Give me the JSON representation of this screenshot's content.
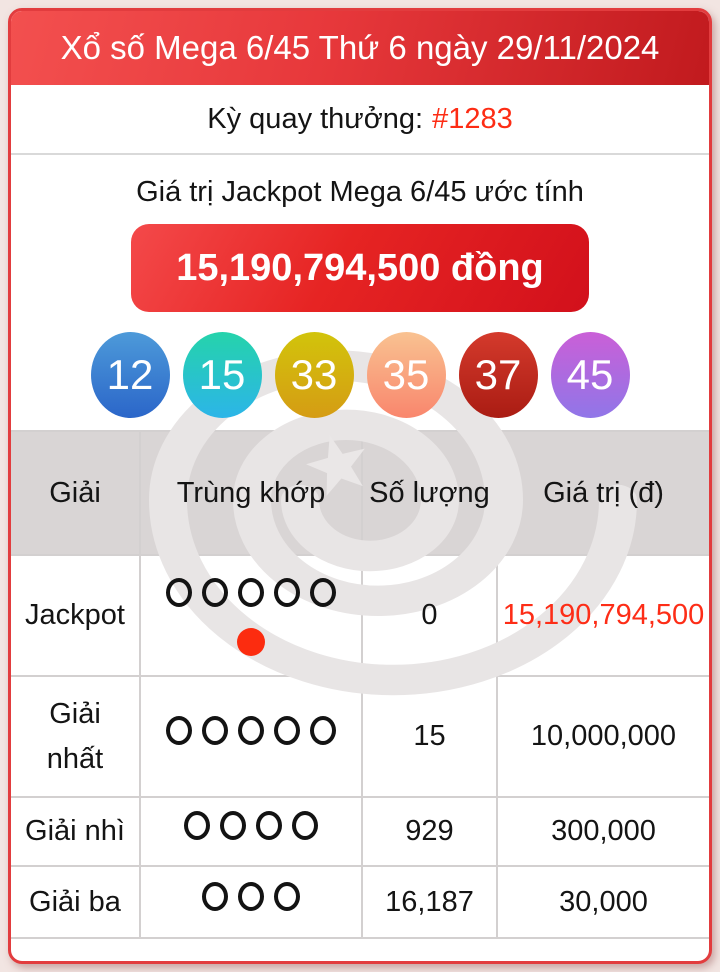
{
  "header": {
    "title": "Xổ số Mega 6/45 Thứ 6 ngày 29/11/2024"
  },
  "draw": {
    "label": "Kỳ quay thưởng:",
    "number": "#1283"
  },
  "jackpot": {
    "caption": "Giá trị Jackpot Mega 6/45 ước tính",
    "amount": "15,190,794,500 đồng"
  },
  "balls": [
    {
      "number": "12",
      "color_top": "#4d9ad9",
      "color_bottom": "#2b66c9"
    },
    {
      "number": "15",
      "color_top": "#25d3ab",
      "color_bottom": "#2cb5e8"
    },
    {
      "number": "33",
      "color_top": "#d2c40b",
      "color_bottom": "#d59c14"
    },
    {
      "number": "35",
      "color_top": "#f9c291",
      "color_bottom": "#f9866d"
    },
    {
      "number": "37",
      "color_top": "#d43a2c",
      "color_bottom": "#aa1c13"
    },
    {
      "number": "45",
      "color_top": "#ca5fd7",
      "color_bottom": "#9076e8"
    }
  ],
  "table": {
    "headers": [
      "Giải",
      "Trùng khớp",
      "Số lượng",
      "Giá trị (đ)"
    ],
    "rows": [
      {
        "prize": "Jackpot",
        "match_circles": 5,
        "bonus_dot": true,
        "count": "0",
        "value": "15,190,794,500",
        "value_color": "#fd2d17"
      },
      {
        "prize": "Giải nhất",
        "match_circles": 5,
        "bonus_dot": false,
        "count": "15",
        "value": "10,000,000"
      },
      {
        "prize": "Giải nhì",
        "match_circles": 4,
        "bonus_dot": false,
        "count": "929",
        "value": "300,000"
      },
      {
        "prize": "Giải ba",
        "match_circles": 3,
        "bonus_dot": false,
        "count": "16,187",
        "value": "30,000"
      }
    ]
  },
  "colors": {
    "accent_red": "#fd2c14",
    "bonus_dot": "#fc2c0f",
    "card_border": "#e23c3e",
    "watermark_gray": "#e8e5e5"
  }
}
